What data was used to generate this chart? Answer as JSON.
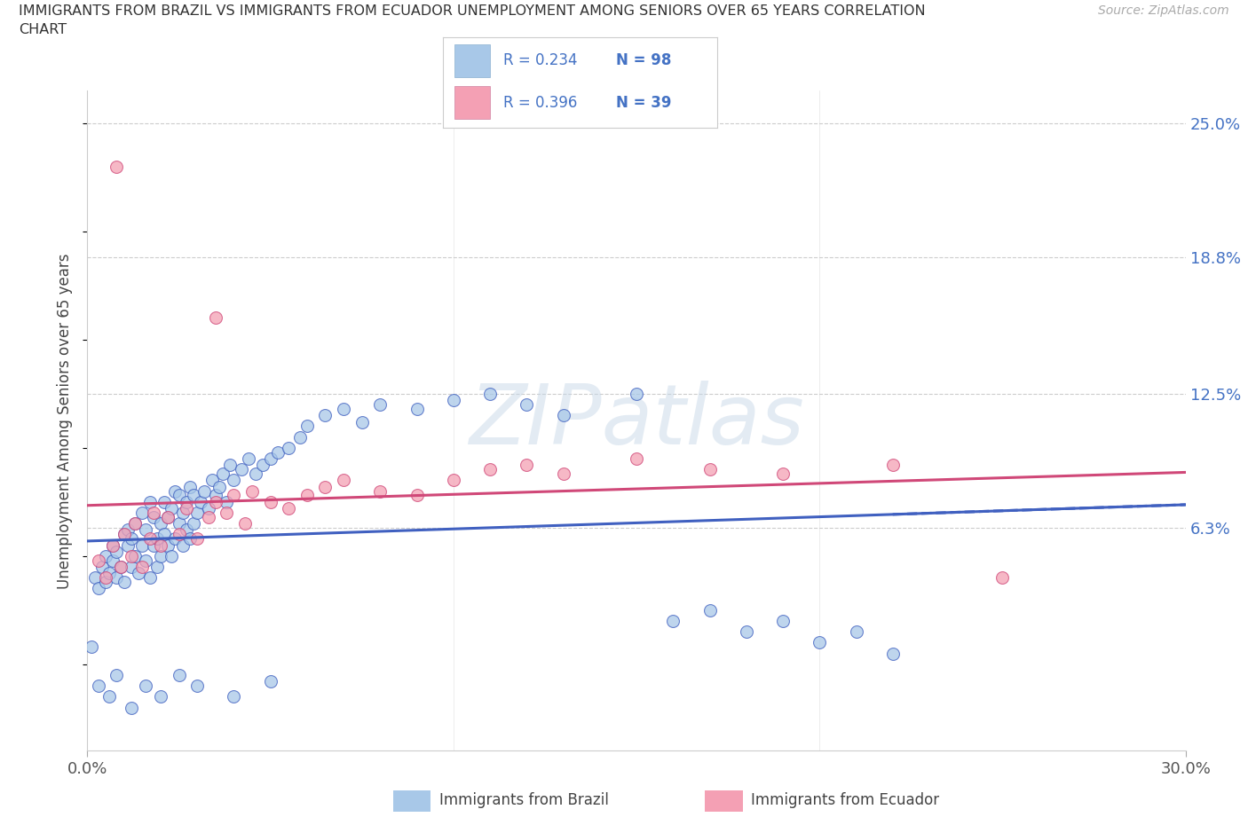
{
  "title_line1": "IMMIGRANTS FROM BRAZIL VS IMMIGRANTS FROM ECUADOR UNEMPLOYMENT AMONG SENIORS OVER 65 YEARS CORRELATION",
  "title_line2": "CHART",
  "source": "Source: ZipAtlas.com",
  "ylabel": "Unemployment Among Seniors over 65 years",
  "x_min": 0.0,
  "x_max": 0.3,
  "y_min": -0.04,
  "y_max": 0.265,
  "y_tick_values": [
    0.063,
    0.125,
    0.188,
    0.25
  ],
  "y_tick_labels": [
    "6.3%",
    "12.5%",
    "18.8%",
    "25.0%"
  ],
  "brazil_color": "#a8c8e8",
  "ecuador_color": "#f4a0b4",
  "brazil_line_color": "#4060c0",
  "ecuador_line_color": "#d04878",
  "brazil_R": 0.234,
  "brazil_N": 98,
  "ecuador_R": 0.396,
  "ecuador_N": 39,
  "legend_color": "#4472c4",
  "brazil_scatter_x": [
    0.002,
    0.003,
    0.004,
    0.005,
    0.005,
    0.006,
    0.007,
    0.007,
    0.008,
    0.008,
    0.009,
    0.01,
    0.01,
    0.011,
    0.011,
    0.012,
    0.012,
    0.013,
    0.013,
    0.014,
    0.015,
    0.015,
    0.016,
    0.016,
    0.017,
    0.017,
    0.018,
    0.018,
    0.019,
    0.019,
    0.02,
    0.02,
    0.021,
    0.021,
    0.022,
    0.022,
    0.023,
    0.023,
    0.024,
    0.024,
    0.025,
    0.025,
    0.026,
    0.026,
    0.027,
    0.027,
    0.028,
    0.028,
    0.029,
    0.029,
    0.03,
    0.031,
    0.032,
    0.033,
    0.034,
    0.035,
    0.036,
    0.037,
    0.038,
    0.039,
    0.04,
    0.042,
    0.044,
    0.046,
    0.048,
    0.05,
    0.052,
    0.055,
    0.058,
    0.06,
    0.065,
    0.07,
    0.075,
    0.08,
    0.09,
    0.1,
    0.11,
    0.12,
    0.13,
    0.15,
    0.16,
    0.17,
    0.18,
    0.19,
    0.2,
    0.21,
    0.22,
    0.001,
    0.003,
    0.006,
    0.008,
    0.012,
    0.016,
    0.02,
    0.025,
    0.03,
    0.04,
    0.05
  ],
  "brazil_scatter_y": [
    0.04,
    0.035,
    0.045,
    0.05,
    0.038,
    0.042,
    0.048,
    0.055,
    0.04,
    0.052,
    0.045,
    0.06,
    0.038,
    0.055,
    0.062,
    0.045,
    0.058,
    0.05,
    0.065,
    0.042,
    0.055,
    0.07,
    0.048,
    0.062,
    0.04,
    0.075,
    0.055,
    0.068,
    0.045,
    0.058,
    0.05,
    0.065,
    0.06,
    0.075,
    0.055,
    0.068,
    0.05,
    0.072,
    0.058,
    0.08,
    0.065,
    0.078,
    0.055,
    0.07,
    0.062,
    0.075,
    0.058,
    0.082,
    0.065,
    0.078,
    0.07,
    0.075,
    0.08,
    0.072,
    0.085,
    0.078,
    0.082,
    0.088,
    0.075,
    0.092,
    0.085,
    0.09,
    0.095,
    0.088,
    0.092,
    0.095,
    0.098,
    0.1,
    0.105,
    0.11,
    0.115,
    0.118,
    0.112,
    0.12,
    0.118,
    0.122,
    0.125,
    0.12,
    0.115,
    0.125,
    0.02,
    0.025,
    0.015,
    0.02,
    0.01,
    0.015,
    0.005,
    0.008,
    -0.01,
    -0.015,
    -0.005,
    -0.02,
    -0.01,
    -0.015,
    -0.005,
    -0.01,
    -0.015,
    -0.008
  ],
  "ecuador_scatter_x": [
    0.003,
    0.005,
    0.007,
    0.009,
    0.01,
    0.012,
    0.013,
    0.015,
    0.017,
    0.018,
    0.02,
    0.022,
    0.025,
    0.027,
    0.03,
    0.033,
    0.035,
    0.038,
    0.04,
    0.043,
    0.045,
    0.05,
    0.055,
    0.06,
    0.065,
    0.07,
    0.08,
    0.09,
    0.1,
    0.11,
    0.12,
    0.13,
    0.15,
    0.17,
    0.19,
    0.22,
    0.25,
    0.008,
    0.035
  ],
  "ecuador_scatter_y": [
    0.048,
    0.04,
    0.055,
    0.045,
    0.06,
    0.05,
    0.065,
    0.045,
    0.058,
    0.07,
    0.055,
    0.068,
    0.06,
    0.072,
    0.058,
    0.068,
    0.075,
    0.07,
    0.078,
    0.065,
    0.08,
    0.075,
    0.072,
    0.078,
    0.082,
    0.085,
    0.08,
    0.078,
    0.085,
    0.09,
    0.092,
    0.088,
    0.095,
    0.09,
    0.088,
    0.092,
    0.04,
    0.23,
    0.16
  ]
}
